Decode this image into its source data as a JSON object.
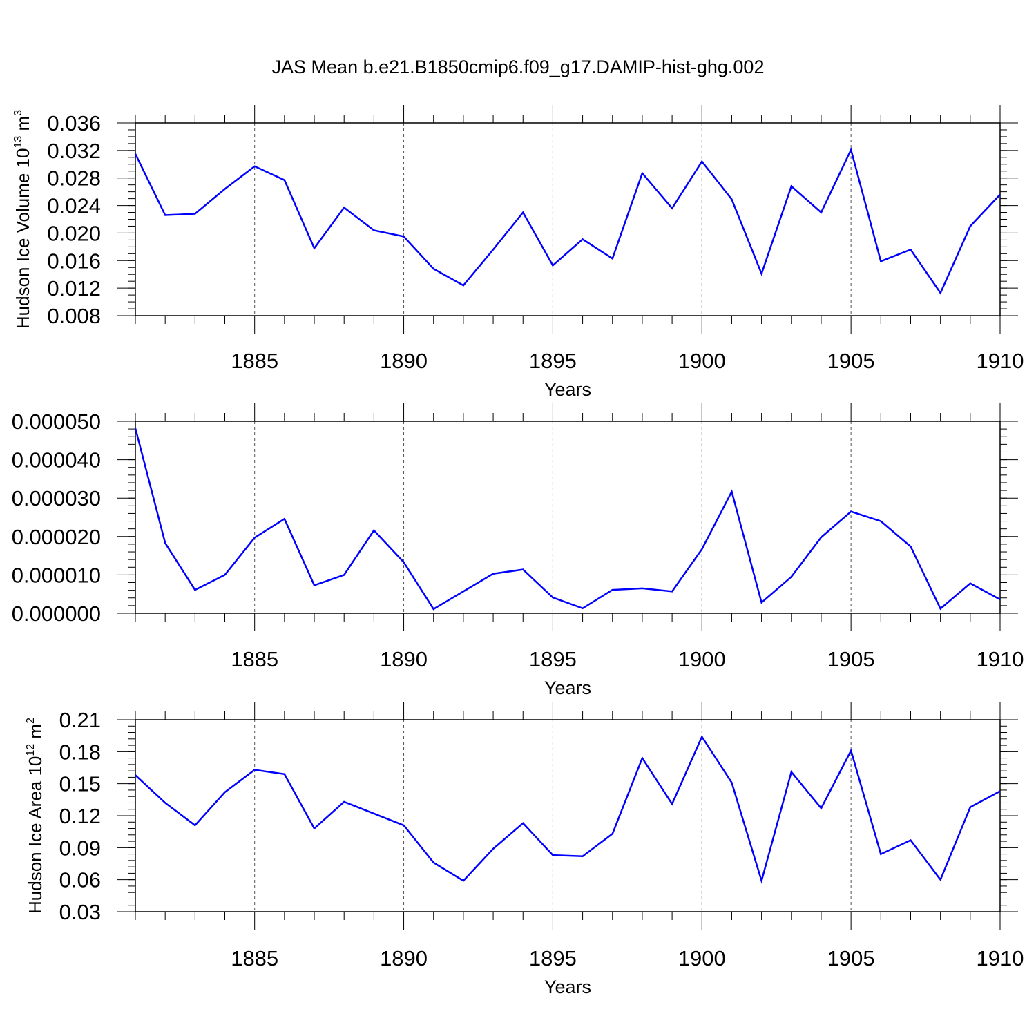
{
  "figure": {
    "title": "JAS Mean b.e21.B1850cmip6.f09_g17.DAMIP-hist-ghg.002",
    "line_color": "#0000ff"
  },
  "chart_data": [
    {
      "type": "line",
      "title": "",
      "xlabel": "Years",
      "ylabel": "Hudson Ice Volume 10",
      "ylabel_exp1": "13",
      "ylabel_unit": " m",
      "ylabel_exp2": "3",
      "xlim": [
        1881,
        1910
      ],
      "ylim": [
        0.008,
        0.036
      ],
      "x_ticks": [
        1885,
        1890,
        1895,
        1900,
        1905,
        1910
      ],
      "x_tick_labels": [
        "1885",
        "1890",
        "1895",
        "1900",
        "1905",
        "1910"
      ],
      "y_ticks": [
        0.008,
        0.012,
        0.016,
        0.02,
        0.024,
        0.028,
        0.032,
        0.036
      ],
      "y_tick_labels": [
        "0.008",
        "0.012",
        "0.016",
        "0.020",
        "0.024",
        "0.028",
        "0.032",
        "0.036"
      ],
      "y_minor_step": 0.001,
      "x": [
        1881,
        1882,
        1883,
        1884,
        1885,
        1886,
        1887,
        1888,
        1889,
        1890,
        1891,
        1892,
        1893,
        1894,
        1895,
        1896,
        1897,
        1898,
        1899,
        1900,
        1901,
        1902,
        1903,
        1904,
        1905,
        1906,
        1907,
        1908,
        1909,
        1910
      ],
      "series": [
        {
          "values": [
            0.0315,
            0.0226,
            0.0228,
            0.0264,
            0.0297,
            0.0277,
            0.0178,
            0.0237,
            0.0204,
            0.0195,
            0.0148,
            0.0124,
            0.0176,
            0.023,
            0.0153,
            0.0191,
            0.0163,
            0.0287,
            0.0236,
            0.0304,
            0.0249,
            0.0141,
            0.0268,
            0.023,
            0.0321,
            0.0159,
            0.0176,
            0.0113,
            0.021,
            0.0256
          ]
        }
      ],
      "grid": "dashed-vertical-at-major-x"
    },
    {
      "type": "line",
      "title": "",
      "xlabel": "Years",
      "ylabel": "",
      "xlim": [
        1881,
        1910
      ],
      "ylim": [
        0.0,
        5e-05
      ],
      "x_ticks": [
        1885,
        1890,
        1895,
        1900,
        1905,
        1910
      ],
      "x_tick_labels": [
        "1885",
        "1890",
        "1895",
        "1900",
        "1905",
        "1910"
      ],
      "y_ticks": [
        0.0,
        1e-05,
        2e-05,
        3e-05,
        4e-05,
        5e-05
      ],
      "y_tick_labels": [
        "0.000000",
        "0.000010",
        "0.000020",
        "0.000030",
        "0.000040",
        "0.000050"
      ],
      "y_minor_step": 2e-06,
      "x": [
        1881,
        1882,
        1883,
        1884,
        1885,
        1886,
        1887,
        1888,
        1889,
        1890,
        1891,
        1892,
        1893,
        1894,
        1895,
        1896,
        1897,
        1898,
        1899,
        1900,
        1901,
        1902,
        1903,
        1904,
        1905,
        1906,
        1907,
        1908,
        1909,
        1910
      ],
      "series": [
        {
          "values": [
            4.82e-05,
            1.83e-05,
            6.1e-06,
            1e-05,
            1.97e-05,
            2.46e-05,
            7.3e-06,
            1e-05,
            2.16e-05,
            1.33e-05,
            1.1e-06,
            5.7e-06,
            1.03e-05,
            1.14e-05,
            4.1e-06,
            1.3e-06,
            6.1e-06,
            6.5e-06,
            5.7e-06,
            1.67e-05,
            3.17e-05,
            2.8e-06,
            9.5e-06,
            1.98e-05,
            2.65e-05,
            2.4e-05,
            1.74e-05,
            1.2e-06,
            7.8e-06,
            3.6e-06
          ]
        }
      ],
      "grid": "dashed-vertical-at-major-x"
    },
    {
      "type": "line",
      "title": "",
      "xlabel": "Years",
      "ylabel": "Hudson Ice Area 10",
      "ylabel_exp1": "12",
      "ylabel_unit": " m",
      "ylabel_exp2": "2",
      "xlim": [
        1881,
        1910
      ],
      "ylim": [
        0.03,
        0.21
      ],
      "x_ticks": [
        1885,
        1890,
        1895,
        1900,
        1905,
        1910
      ],
      "x_tick_labels": [
        "1885",
        "1890",
        "1895",
        "1900",
        "1905",
        "1910"
      ],
      "y_ticks": [
        0.03,
        0.06,
        0.09,
        0.12,
        0.15,
        0.18,
        0.21
      ],
      "y_tick_labels": [
        "0.03",
        "0.06",
        "0.09",
        "0.12",
        "0.15",
        "0.18",
        "0.21"
      ],
      "y_minor_step": 0.006,
      "x": [
        1881,
        1882,
        1883,
        1884,
        1885,
        1886,
        1887,
        1888,
        1889,
        1890,
        1891,
        1892,
        1893,
        1894,
        1895,
        1896,
        1897,
        1898,
        1899,
        1900,
        1901,
        1902,
        1903,
        1904,
        1905,
        1906,
        1907,
        1908,
        1909,
        1910
      ],
      "series": [
        {
          "values": [
            0.158,
            0.132,
            0.111,
            0.142,
            0.163,
            0.159,
            0.108,
            0.133,
            0.122,
            0.111,
            0.076,
            0.059,
            0.089,
            0.113,
            0.083,
            0.082,
            0.103,
            0.174,
            0.131,
            0.194,
            0.151,
            0.059,
            0.161,
            0.127,
            0.181,
            0.084,
            0.097,
            0.06,
            0.128,
            0.143
          ]
        }
      ],
      "grid": "dashed-vertical-at-major-x"
    }
  ]
}
